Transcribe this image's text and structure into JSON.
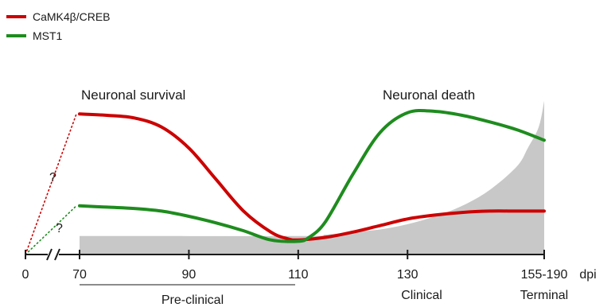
{
  "colors": {
    "camk4": "#cc0000",
    "mst1": "#1e8c1e",
    "shade": "#c8c8c8",
    "axis": "#1a1a1a"
  },
  "chart_data": {
    "type": "line",
    "legend": {
      "placement": "top-left",
      "items": [
        {
          "key": "camk4",
          "label": "CaMK4β/CREB",
          "color": "#cc0000"
        },
        {
          "key": "mst1",
          "label": "MST1",
          "color": "#1e8c1e"
        }
      ]
    },
    "annotations": {
      "survival": "Neuronal survival",
      "death": "Neuronal death"
    },
    "unknown_markers": [
      {
        "series": "camk4",
        "text": "?"
      },
      {
        "series": "mst1",
        "text": "?"
      }
    ],
    "x_axis": {
      "unit": "dpi",
      "broken_between": [
        0,
        70
      ],
      "ticks": [
        "0",
        "70",
        "90",
        "110",
        "130",
        "155-190"
      ],
      "domain": [
        70,
        155
      ]
    },
    "stages": [
      {
        "label": "Pre-clinical",
        "from": 70,
        "to": 110,
        "underline": true
      },
      {
        "label": "Clinical",
        "at": 130
      },
      {
        "label": "Terminal",
        "at": 155
      }
    ],
    "y_relative_range": [
      0,
      1
    ],
    "series": [
      {
        "key": "camk4",
        "name": "CaMK4β/CREB",
        "x": [
          70,
          75,
          80,
          85,
          90,
          95,
          100,
          105,
          108,
          110,
          115,
          120,
          125,
          130,
          135,
          140,
          145,
          150,
          155
        ],
        "y": [
          0.98,
          0.97,
          0.95,
          0.88,
          0.72,
          0.48,
          0.24,
          0.08,
          0.03,
          0.02,
          0.04,
          0.08,
          0.13,
          0.18,
          0.21,
          0.23,
          0.24,
          0.24,
          0.24
        ]
      },
      {
        "key": "mst1",
        "name": "MST1",
        "x": [
          70,
          75,
          80,
          85,
          90,
          95,
          100,
          105,
          110,
          112,
          115,
          120,
          125,
          130,
          135,
          140,
          145,
          150,
          155
        ],
        "y": [
          0.28,
          0.27,
          0.26,
          0.24,
          0.2,
          0.15,
          0.09,
          0.02,
          0.01,
          0.04,
          0.16,
          0.52,
          0.84,
          0.99,
          1.0,
          0.97,
          0.92,
          0.86,
          0.78
        ]
      }
    ],
    "shaded_area": {
      "x": [
        70,
        110,
        115,
        120,
        125,
        130,
        135,
        140,
        145,
        150,
        152,
        154,
        155
      ],
      "y": [
        0.05,
        0.05,
        0.06,
        0.08,
        0.1,
        0.14,
        0.2,
        0.28,
        0.4,
        0.58,
        0.72,
        0.88,
        1.08
      ]
    }
  }
}
